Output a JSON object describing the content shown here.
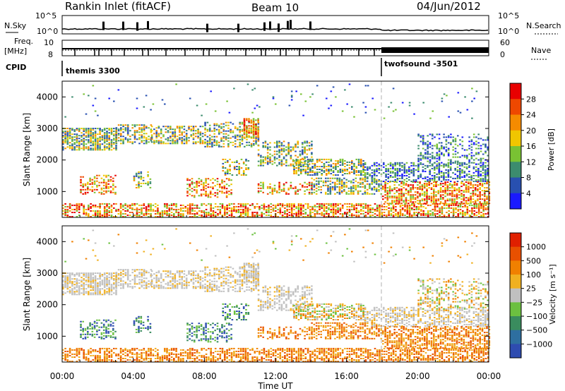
{
  "header": {
    "station": "Rankin Inlet (fitACF)",
    "beam": "Beam 10",
    "date": "04/Jun/2012"
  },
  "top_panels": {
    "nsky_label": "N.Sky",
    "nsky_ticks": [
      "10^5",
      "10^0"
    ],
    "nsearch_label": "N.Search",
    "freq_label_1": "Freq.",
    "freq_label_2": "[MHz]",
    "freq_ticks": [
      "10",
      "8"
    ],
    "nave_label": "Nave",
    "nave_ticks": [
      "60",
      "0"
    ],
    "cpid_label": "CPID",
    "cpid_1": "themis 3300",
    "cpid_2": "twofsound -3501"
  },
  "chart_data": [
    {
      "type": "heatmap",
      "title": "",
      "xlabel": "Time UT",
      "ylabel": "Slant Range [km]",
      "xticks": [
        "00:00",
        "04:00",
        "08:00",
        "12:00",
        "16:00",
        "20:00",
        "00:00"
      ],
      "yticks": [
        "1000",
        "2000",
        "3000",
        "4000"
      ],
      "ylim": [
        180,
        4500
      ],
      "colorbar_label": "Power [dB]",
      "colorbar_ticks": [
        "4",
        "8",
        "12",
        "16",
        "20",
        "24",
        "28"
      ],
      "colorbar_colors": [
        "#1a1aff",
        "#2850b0",
        "#3c8c6e",
        "#79c233",
        "#f0c600",
        "#f58b00",
        "#ee4800",
        "#e80000"
      ]
    },
    {
      "type": "heatmap",
      "title": "",
      "xlabel": "Time UT",
      "ylabel": "Slant Range [km]",
      "xticks": [
        "00:00",
        "04:00",
        "08:00",
        "12:00",
        "16:00",
        "20:00",
        "00:00"
      ],
      "yticks": [
        "1000",
        "2000",
        "3000",
        "4000"
      ],
      "ylim": [
        180,
        4500
      ],
      "colorbar_label": "Velocity [m s⁻¹]",
      "colorbar_ticks": [
        "1000",
        "500",
        "100",
        "25",
        "−25",
        "−100",
        "−500",
        "−1000"
      ],
      "colorbar_colors": [
        "#2e4cb0",
        "#2e6fa0",
        "#3a8c5e",
        "#6cc040",
        "#c0c0c0",
        "#f0b020",
        "#f08000",
        "#e85000",
        "#e02000"
      ]
    }
  ]
}
